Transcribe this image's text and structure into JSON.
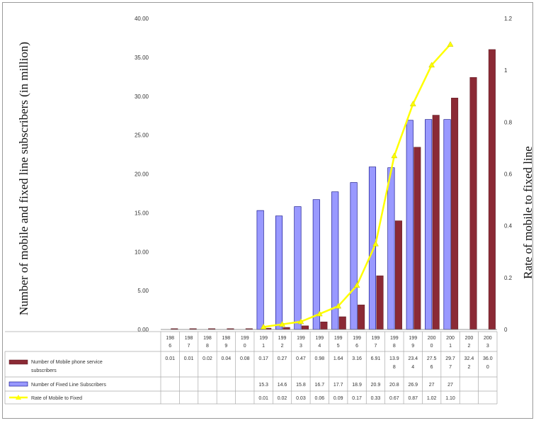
{
  "chart_data": {
    "type": "bar",
    "xlabel": "",
    "ylabel_left": "Number of mobile and fixed line subscribers (in million)",
    "ylabel_right": "Rate of mobile to fixed line",
    "left_axis": {
      "ylim": [
        0,
        40
      ],
      "ticks": [
        "0.00",
        "5.00",
        "10.00",
        "15.00",
        "20.00",
        "25.00",
        "30.00",
        "35.00",
        "40.00"
      ]
    },
    "right_axis": {
      "ylim": [
        0,
        1.2
      ],
      "ticks": [
        "0",
        "0.2",
        "0.4",
        "0.6",
        "0.8",
        "1",
        "1.2"
      ]
    },
    "categories": [
      [
        "198",
        "6"
      ],
      [
        "198",
        "7"
      ],
      [
        "198",
        "8"
      ],
      [
        "198",
        "9"
      ],
      [
        "199",
        "0"
      ],
      [
        "199",
        "1"
      ],
      [
        "199",
        "2"
      ],
      [
        "199",
        "3"
      ],
      [
        "199",
        "4"
      ],
      [
        "199",
        "5"
      ],
      [
        "199",
        "6"
      ],
      [
        "199",
        "7"
      ],
      [
        "199",
        "8"
      ],
      [
        "199",
        "9"
      ],
      [
        "200",
        "0"
      ],
      [
        "200",
        "1"
      ],
      [
        "200",
        "2"
      ],
      [
        "200",
        "3"
      ]
    ],
    "series": [
      {
        "name": "Number of Mobile phone service subscribers",
        "type": "bar",
        "color": "#8B2A35",
        "values": [
          0.01,
          0.01,
          0.02,
          0.04,
          0.08,
          0.17,
          0.27,
          0.47,
          0.98,
          1.64,
          3.16,
          6.91,
          13.98,
          23.44,
          27.56,
          29.77,
          32.42,
          36.0
        ],
        "labels": [
          [
            "0.01"
          ],
          [
            "0.01"
          ],
          [
            "0.02"
          ],
          [
            "0.04"
          ],
          [
            "0.08"
          ],
          [
            "0.17"
          ],
          [
            "0.27"
          ],
          [
            "0.47"
          ],
          [
            "0.98"
          ],
          [
            "1.64"
          ],
          [
            "3.16"
          ],
          [
            "6.91"
          ],
          [
            "13.9",
            "8"
          ],
          [
            "23.4",
            "4"
          ],
          [
            "27.5",
            "6"
          ],
          [
            "29.7",
            "7"
          ],
          [
            "32.4",
            "2"
          ],
          [
            "36.0",
            "0"
          ]
        ]
      },
      {
        "name": "Number of Fixed Line Subscribers",
        "type": "bar",
        "color": "#9999FF",
        "values": [
          null,
          null,
          null,
          null,
          null,
          15.3,
          14.6,
          15.8,
          16.7,
          17.7,
          18.9,
          20.9,
          20.8,
          26.9,
          27,
          27,
          null,
          null
        ],
        "labels": [
          [
            ""
          ],
          [
            ""
          ],
          [
            ""
          ],
          [
            ""
          ],
          [
            ""
          ],
          [
            "15.3"
          ],
          [
            "14.6"
          ],
          [
            "15.8"
          ],
          [
            "16.7"
          ],
          [
            "17.7"
          ],
          [
            "18.9"
          ],
          [
            "20.9"
          ],
          [
            "20.8"
          ],
          [
            "26.9"
          ],
          [
            "27"
          ],
          [
            "27"
          ],
          [
            ""
          ],
          [
            ""
          ]
        ]
      },
      {
        "name": "Rate of Mobile to Fixed",
        "type": "line",
        "axis": "right",
        "color": "#FFFF00",
        "values": [
          null,
          null,
          null,
          null,
          null,
          0.01,
          0.02,
          0.03,
          0.06,
          0.09,
          0.17,
          0.33,
          0.67,
          0.87,
          1.02,
          1.1,
          null,
          null
        ],
        "labels": [
          [
            ""
          ],
          [
            ""
          ],
          [
            ""
          ],
          [
            ""
          ],
          [
            ""
          ],
          [
            "0.01"
          ],
          [
            "0.02"
          ],
          [
            "0.03"
          ],
          [
            "0.06"
          ],
          [
            "0.09"
          ],
          [
            "0.17"
          ],
          [
            "0.33"
          ],
          [
            "0.67"
          ],
          [
            "0.87"
          ],
          [
            "1.02"
          ],
          [
            "1.10"
          ],
          [
            ""
          ],
          [
            ""
          ]
        ]
      }
    ]
  }
}
